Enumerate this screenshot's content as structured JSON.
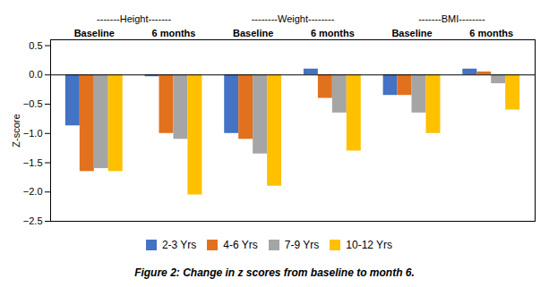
{
  "chart_data": {
    "type": "bar",
    "categories": [
      "Baseline",
      "6 months",
      "Baseline",
      "6 months",
      "Baseline",
      "6 months"
    ],
    "series": [
      {
        "name": "2-3 Yrs",
        "color": "#4472C4",
        "values": [
          -0.87,
          -0.03,
          -1.0,
          0.1,
          -0.35,
          0.1
        ]
      },
      {
        "name": "4-6 Yrs",
        "color": "#E2711D",
        "values": [
          -1.65,
          -1.0,
          -1.1,
          -0.4,
          -0.35,
          0.05
        ]
      },
      {
        "name": "7-9 Yrs",
        "color": "#A5A5A5",
        "values": [
          -1.6,
          -1.1,
          -1.35,
          -0.65,
          -0.65,
          -0.15
        ]
      },
      {
        "name": "10-12 Yrs",
        "color": "#FFC000",
        "values": [
          -1.65,
          -2.05,
          -1.9,
          -1.3,
          -1.0,
          -0.6
        ]
      }
    ],
    "ylabel": "Z-score",
    "ylim": [
      -2.5,
      0.6
    ],
    "yticks": [
      0.5,
      {
        "value": 0,
        "label": "0.0"
      },
      {
        "value": -0.5,
        "label": "−0.5"
      },
      {
        "value": -1.0,
        "label": "−1.0"
      },
      {
        "value": -1.5,
        "label": "−1.5"
      },
      {
        "value": -2.0,
        "label": "−2.0"
      },
      {
        "value": -2.5,
        "label": "−2.5"
      }
    ],
    "annotations": [
      "-------Height-------",
      "--------Weight--------",
      "-------BMI--------"
    ],
    "caption": "Figure 2: Change in z scores from baseline to month 6.",
    "legend": "bottom"
  }
}
